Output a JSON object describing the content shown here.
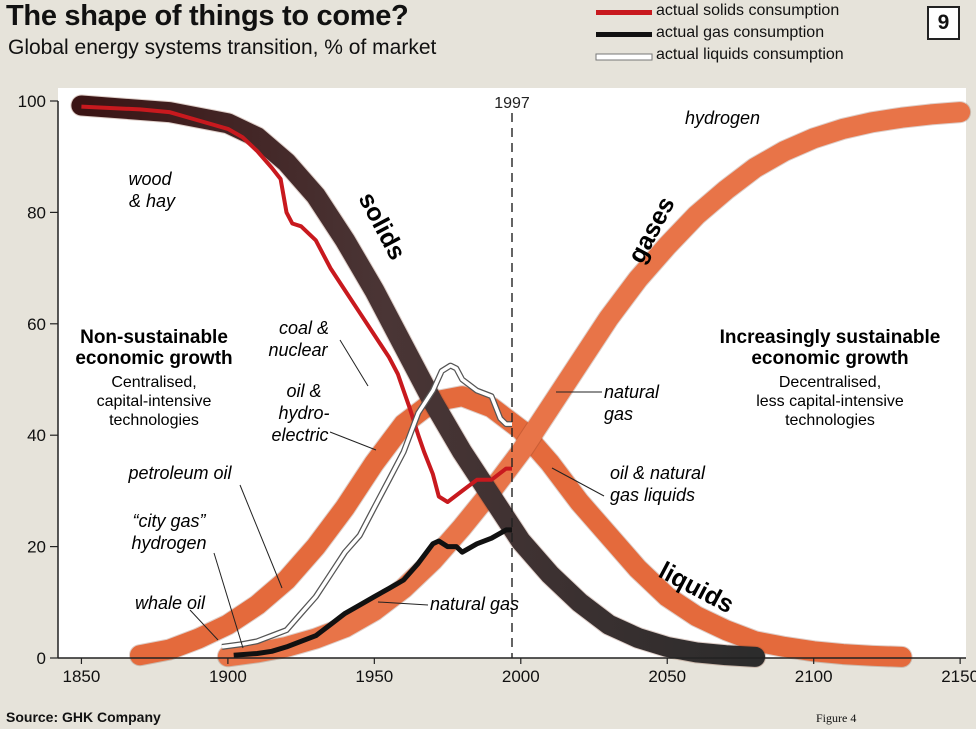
{
  "title": "The shape of things to come?",
  "subtitle": "Global energy systems transition, % of market",
  "figure_number": "9",
  "source": "Source: GHK Company",
  "figure_note": "Figure 4",
  "legend": [
    {
      "label": "actual solids consumption",
      "color": "#c8191e"
    },
    {
      "label": "actual gas consumption",
      "color": "#111111"
    },
    {
      "label": "actual liquids consumption",
      "color": "#ffffff"
    }
  ],
  "chart_data": {
    "type": "line",
    "xlim": [
      1842,
      2152
    ],
    "ylim": [
      0,
      100
    ],
    "x_ticks": [
      1850,
      1900,
      1950,
      2000,
      2050,
      2100,
      2150
    ],
    "y_ticks": [
      0,
      20,
      40,
      60,
      80,
      100
    ],
    "grid": false,
    "legend_position": "top-right",
    "reference_line": {
      "x": 1997,
      "label": "1997"
    },
    "series": [
      {
        "name": "solids",
        "style": "band",
        "color_start": "#3a1a1a",
        "color_end": "#2a2a2a",
        "x": [
          1850,
          1880,
          1900,
          1910,
          1920,
          1930,
          1940,
          1950,
          1960,
          1970,
          1980,
          1990,
          2000,
          2010,
          2020,
          2030,
          2040,
          2050,
          2060,
          2070,
          2080
        ],
        "y": [
          99.2,
          98,
          96,
          93.5,
          89,
          83,
          75,
          66,
          56,
          46,
          37,
          29,
          21,
          15,
          10,
          6,
          3.6,
          2,
          1,
          0.5,
          0.2
        ]
      },
      {
        "name": "liquids",
        "style": "band",
        "color": "#e46a3c",
        "x": [
          1870,
          1880,
          1890,
          1900,
          1910,
          1920,
          1930,
          1940,
          1950,
          1960,
          1970,
          1980,
          1990,
          2000,
          2010,
          2020,
          2030,
          2040,
          2050,
          2060,
          2070,
          2080,
          2090,
          2100,
          2110,
          2120,
          2130
        ],
        "y": [
          0.5,
          1.5,
          3.5,
          6,
          9.5,
          14,
          20,
          27,
          35,
          42,
          46,
          47,
          45,
          41,
          35,
          28,
          22,
          16,
          11,
          7.5,
          5,
          3,
          2,
          1.2,
          0.7,
          0.4,
          0.2
        ]
      },
      {
        "name": "gases",
        "style": "band",
        "color": "#e87448",
        "x": [
          1900,
          1910,
          1920,
          1930,
          1940,
          1950,
          1960,
          1970,
          1980,
          1990,
          2000,
          2010,
          2020,
          2030,
          2040,
          2050,
          2060,
          2070,
          2080,
          2090,
          2100,
          2110,
          2120,
          2130,
          2140,
          2150
        ],
        "y": [
          0.3,
          1,
          2,
          3.5,
          5.5,
          8.5,
          12.5,
          17.5,
          23.5,
          30,
          37,
          45,
          53,
          61,
          68,
          74,
          79.5,
          84,
          88,
          91,
          93.3,
          95,
          96.2,
          97,
          97.6,
          98
        ]
      },
      {
        "name": "actual solids consumption",
        "color": "#c8191e",
        "x": [
          1850,
          1870,
          1880,
          1890,
          1900,
          1905,
          1910,
          1915,
          1918,
          1920,
          1922,
          1925,
          1930,
          1935,
          1940,
          1945,
          1950,
          1955,
          1958,
          1960,
          1962,
          1965,
          1967,
          1970,
          1972,
          1975,
          1980,
          1985,
          1990,
          1995,
          1997
        ],
        "y": [
          99,
          98.5,
          98,
          96.5,
          95,
          93.5,
          91,
          88,
          86,
          80,
          78,
          77.5,
          75,
          70,
          66,
          62,
          58,
          54,
          51,
          48,
          45,
          40,
          37,
          33,
          29,
          28,
          30,
          32,
          32,
          34,
          34
        ]
      },
      {
        "name": "actual gas consumption",
        "color": "#111111",
        "x": [
          1902,
          1910,
          1915,
          1920,
          1925,
          1930,
          1935,
          1940,
          1945,
          1950,
          1955,
          1960,
          1965,
          1970,
          1972,
          1975,
          1978,
          1980,
          1985,
          1990,
          1995,
          1997
        ],
        "y": [
          0.5,
          0.8,
          1.2,
          2,
          3,
          4,
          6,
          8,
          9.5,
          11,
          12.5,
          14,
          17,
          20.5,
          21,
          20,
          20,
          19,
          20.5,
          21.5,
          23,
          23
        ]
      },
      {
        "name": "actual liquids consumption",
        "color": "#ffffff",
        "x": [
          1898,
          1905,
          1910,
          1915,
          1920,
          1925,
          1930,
          1935,
          1940,
          1945,
          1950,
          1955,
          1960,
          1965,
          1970,
          1973,
          1976,
          1978,
          1980,
          1985,
          1990,
          1993,
          1995,
          1997
        ],
        "y": [
          2,
          2.5,
          3,
          4,
          5,
          8,
          11,
          15,
          19,
          22,
          27,
          32,
          37,
          44,
          48,
          51.5,
          52.5,
          52,
          50,
          48,
          47,
          43,
          42,
          42
        ]
      }
    ],
    "annotations": [
      {
        "text": "wood",
        "name": "label-wood"
      },
      {
        "text": "& hay",
        "name": "label-hay"
      },
      {
        "text": "solids",
        "name": "label-solids"
      },
      {
        "text": "gases",
        "name": "label-gases"
      },
      {
        "text": "liquids",
        "name": "label-liquids"
      },
      {
        "text": "hydrogen",
        "name": "label-hydrogen"
      },
      {
        "text": "coal &",
        "name": "label-coal"
      },
      {
        "text": "nuclear",
        "name": "label-nuclear"
      },
      {
        "text": "oil &",
        "name": "label-oil"
      },
      {
        "text": "hydro-",
        "name": "label-hydro"
      },
      {
        "text": "electric",
        "name": "label-electric"
      },
      {
        "text": "petroleum oil",
        "name": "label-petroleum-oil"
      },
      {
        "text": "“city gas”",
        "name": "label-city-gas"
      },
      {
        "text": "hydrogen",
        "name": "label-city-hydrogen"
      },
      {
        "text": "whale oil",
        "name": "label-whale-oil"
      },
      {
        "text": "natural",
        "name": "label-natural"
      },
      {
        "text": "gas",
        "name": "label-natural-gas-2"
      },
      {
        "text": "oil & natural",
        "name": "label-oil-natural"
      },
      {
        "text": "gas liquids",
        "name": "label-gas-liquids"
      },
      {
        "text": "natural gas",
        "name": "label-actual-natural-gas"
      },
      {
        "text": "Non-sustainable",
        "name": "nonsust-heading-1"
      },
      {
        "text": "economic growth",
        "name": "nonsust-heading-2"
      },
      {
        "text": "Centralised,",
        "name": "nonsust-line-1"
      },
      {
        "text": "capital-intensive",
        "name": "nonsust-line-2"
      },
      {
        "text": "technologies",
        "name": "nonsust-line-3"
      },
      {
        "text": "Increasingly sustainable",
        "name": "sust-heading-1"
      },
      {
        "text": "economic growth",
        "name": "sust-heading-2"
      },
      {
        "text": "Decentralised,",
        "name": "sust-line-1"
      },
      {
        "text": "less capital-intensive",
        "name": "sust-line-2"
      },
      {
        "text": "technologies",
        "name": "sust-line-3"
      }
    ]
  }
}
